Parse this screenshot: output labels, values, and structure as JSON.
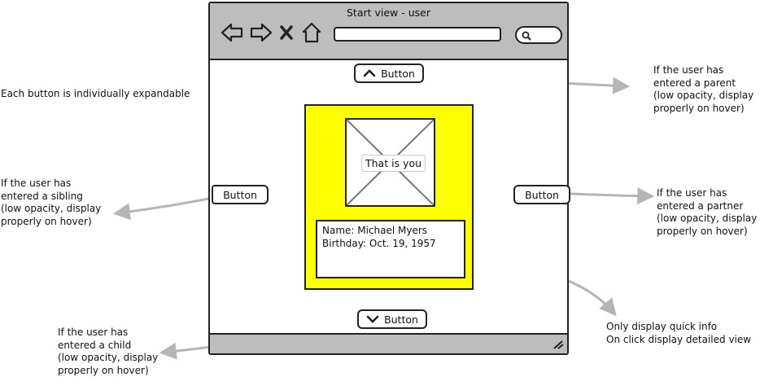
{
  "window": {
    "title": "Start view - user"
  },
  "toolbar": {
    "back_icon": "back-arrow-icon",
    "forward_icon": "forward-arrow-icon",
    "stop_icon": "close-icon",
    "home_icon": "home-icon",
    "search_icon": "search-icon"
  },
  "buttons": {
    "parent": "Button",
    "sibling": "Button",
    "partner": "Button",
    "child": "Button"
  },
  "profile": {
    "photo_label": "That is you",
    "name": "Name: Michael Myers",
    "birthday": "Birthday: Oct. 19, 1957"
  },
  "annotations": {
    "expandable": [
      "Each button is individually expandable"
    ],
    "parent": [
      "If the user has",
      "entered a parent",
      "(low opacity, display",
      "properly on hover)"
    ],
    "sibling": [
      "If the user has",
      "entered a sibling",
      "(low opacity, display",
      "properly on hover)"
    ],
    "partner": [
      "If the user has",
      "entered a partner",
      "(low opacity, display",
      "properly on hover)"
    ],
    "child": [
      "If the user has",
      "entered a child",
      "(low opacity, display",
      "properly on hover)"
    ],
    "quick_info": [
      "Only display quick info",
      "On click display detailed view"
    ]
  },
  "colors": {
    "card": "#ffff00",
    "chrome": "#bdbdbd",
    "arrow": "#b5b5b5"
  }
}
